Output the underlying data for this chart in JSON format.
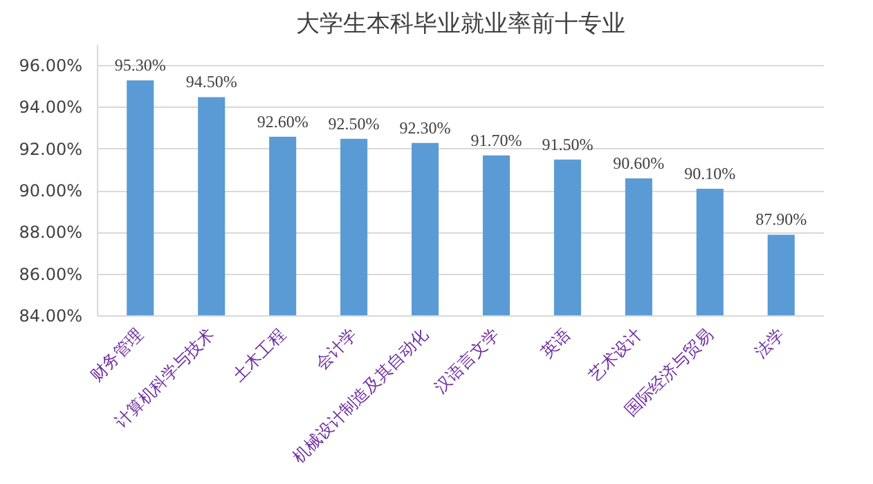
{
  "chart_data": {
    "type": "bar",
    "title": "大学生本科毕业就业率前十专业",
    "categories": [
      "财务管理",
      "计算机科学与技术",
      "土木工程",
      "会计学",
      "机械设计制造及其自动化",
      "汉语言文学",
      "英语",
      "艺术设计",
      "国际经济与贸易",
      "法学"
    ],
    "values": [
      95.3,
      94.5,
      92.6,
      92.5,
      92.3,
      91.7,
      91.5,
      90.6,
      90.1,
      87.9
    ],
    "value_labels": [
      "95.30%",
      "94.50%",
      "92.60%",
      "92.50%",
      "92.30%",
      "91.70%",
      "91.50%",
      "90.60%",
      "90.10%",
      "87.90%"
    ],
    "color": "#5b9bd5",
    "ylim": [
      84,
      97
    ],
    "yticks": [
      {
        "value": 84,
        "label": "84.00%"
      },
      {
        "value": 86,
        "label": "86.00%"
      },
      {
        "value": 88,
        "label": "88.00%"
      },
      {
        "value": 90,
        "label": "90.00%"
      },
      {
        "value": 92,
        "label": "92.00%"
      },
      {
        "value": 94,
        "label": "94.00%"
      },
      {
        "value": 96,
        "label": "96.00%"
      }
    ],
    "grid": "y"
  }
}
